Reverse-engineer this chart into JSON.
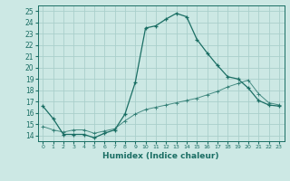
{
  "title": "",
  "xlabel": "Humidex (Indice chaleur)",
  "ylabel": "",
  "xlim": [
    -0.5,
    23.5
  ],
  "ylim": [
    13.5,
    25.5
  ],
  "yticks": [
    14,
    15,
    16,
    17,
    18,
    19,
    20,
    21,
    22,
    23,
    24,
    25
  ],
  "xticks": [
    0,
    1,
    2,
    3,
    4,
    5,
    6,
    7,
    8,
    9,
    10,
    11,
    12,
    13,
    14,
    15,
    16,
    17,
    18,
    19,
    20,
    21,
    22,
    23
  ],
  "bg_color": "#cce8e4",
  "grid_color": "#aacfcb",
  "line_color": "#1a6e64",
  "curve1_x": [
    0,
    1,
    2,
    3,
    4,
    5,
    6,
    7,
    8,
    9,
    10,
    11,
    12,
    13,
    14,
    15,
    16,
    17,
    18,
    19,
    20,
    21,
    22,
    23
  ],
  "curve1_y": [
    16.6,
    15.5,
    14.1,
    14.1,
    14.1,
    13.8,
    14.2,
    14.5,
    15.9,
    18.7,
    23.5,
    23.7,
    24.3,
    24.8,
    24.5,
    22.5,
    21.3,
    20.2,
    19.2,
    19.0,
    18.2,
    17.1,
    16.7,
    16.6
  ],
  "curve2_x": [
    0,
    1,
    2,
    3,
    4,
    5,
    6,
    7,
    8,
    9,
    10,
    11,
    12,
    13,
    14,
    15,
    16,
    17,
    18,
    19,
    20,
    21,
    22,
    23
  ],
  "curve2_y": [
    14.8,
    14.5,
    14.3,
    14.5,
    14.5,
    14.2,
    14.4,
    14.6,
    15.3,
    15.9,
    16.3,
    16.5,
    16.7,
    16.9,
    17.1,
    17.3,
    17.6,
    17.9,
    18.3,
    18.6,
    18.9,
    17.7,
    16.9,
    16.7
  ]
}
